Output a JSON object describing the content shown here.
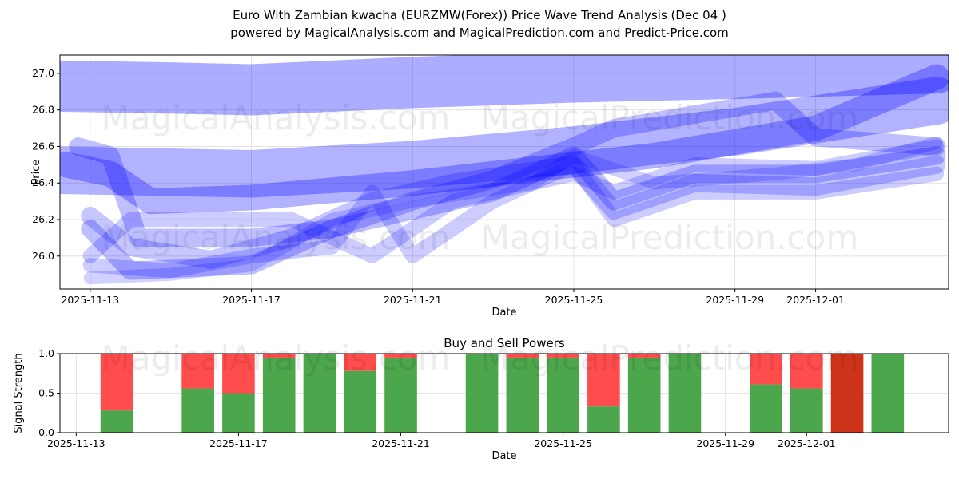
{
  "title": "Euro With Zambian kwacha (EURZMW(Forex)) Price Wave Trend Analysis (Dec 04 )",
  "subtitle": "powered by MagicalAnalysis.com and MagicalPrediction.com and Predict-Price.com",
  "watermarks": [
    "MagicalAnalysis.com",
    "MagicalPrediction.com"
  ],
  "chart_data": [
    {
      "type": "line",
      "title": "",
      "xlabel": "Date",
      "ylabel": "Price",
      "ylim": [
        25.82,
        27.1
      ],
      "x_origin": "2025-11-13",
      "xlim_days": [
        -0.75,
        21.3
      ],
      "yticks": [
        {
          "v": 26.0,
          "l": "26.0"
        },
        {
          "v": 26.2,
          "l": "26.2"
        },
        {
          "v": 26.4,
          "l": "26.4"
        },
        {
          "v": 26.6,
          "l": "26.6"
        },
        {
          "v": 26.8,
          "l": "26.8"
        },
        {
          "v": 27.0,
          "l": "27.0"
        }
      ],
      "xticks": [
        {
          "d": 0,
          "l": "2025-11-13"
        },
        {
          "d": 4,
          "l": "2025-11-17"
        },
        {
          "d": 8,
          "l": "2025-11-21"
        },
        {
          "d": 12,
          "l": "2025-11-25"
        },
        {
          "d": 16,
          "l": "2025-11-29"
        },
        {
          "d": 18,
          "l": "2025-12-01"
        }
      ],
      "color": "#0000ff",
      "waves": [
        {
          "width": 0.28,
          "alpha": 0.32,
          "points": [
            [
              -0.7,
              26.93
            ],
            [
              2,
              26.92
            ],
            [
              4,
              26.91
            ],
            [
              8,
              26.95
            ],
            [
              12,
              26.98
            ],
            [
              16,
              27.0
            ],
            [
              21,
              27.03
            ]
          ]
        },
        {
          "width": 0.26,
          "alpha": 0.3,
          "points": [
            [
              -0.7,
              26.47
            ],
            [
              4,
              26.45
            ],
            [
              8,
              26.5
            ],
            [
              12,
              26.58
            ],
            [
              16,
              26.68
            ],
            [
              21,
              26.85
            ]
          ]
        },
        {
          "width": 0.14,
          "alpha": 0.3,
          "points": [
            [
              -0.6,
              26.5
            ],
            [
              0.5,
              26.45
            ],
            [
              1.5,
              26.3
            ],
            [
              4,
              26.32
            ],
            [
              8,
              26.4
            ],
            [
              12,
              26.5
            ],
            [
              14,
              26.55
            ],
            [
              18,
              26.7
            ],
            [
              21,
              26.98
            ]
          ]
        },
        {
          "width": 0.1,
          "alpha": 0.25,
          "points": [
            [
              -0.3,
              26.6
            ],
            [
              0.5,
              26.55
            ],
            [
              1.2,
              26.1
            ],
            [
              4,
              26.1
            ],
            [
              6,
              26.15
            ],
            [
              8,
              26.3
            ],
            [
              10,
              26.42
            ],
            [
              12,
              26.6
            ],
            [
              13,
              26.7
            ],
            [
              17,
              26.85
            ],
            [
              18,
              26.65
            ],
            [
              21,
              26.6
            ]
          ]
        },
        {
          "width": 0.1,
          "alpha": 0.25,
          "points": [
            [
              0,
              26.15
            ],
            [
              1,
              25.92
            ],
            [
              4,
              25.95
            ],
            [
              6,
              26.15
            ],
            [
              8,
              26.25
            ],
            [
              10,
              26.35
            ],
            [
              12,
              26.55
            ],
            [
              13,
              26.3
            ],
            [
              15,
              26.45
            ],
            [
              18,
              26.45
            ],
            [
              21,
              26.55
            ]
          ]
        },
        {
          "width": 0.1,
          "alpha": 0.22,
          "points": [
            [
              0,
              26.22
            ],
            [
              1,
              26.05
            ],
            [
              3,
              25.98
            ],
            [
              5,
              26.1
            ],
            [
              7,
              26.3
            ],
            [
              9,
              26.4
            ],
            [
              12,
              26.5
            ],
            [
              13,
              26.25
            ],
            [
              15,
              26.4
            ],
            [
              18,
              26.38
            ],
            [
              21,
              26.5
            ]
          ]
        },
        {
          "width": 0.08,
          "alpha": 0.2,
          "points": [
            [
              0,
              25.95
            ],
            [
              2,
              25.92
            ],
            [
              4,
              26.0
            ],
            [
              6,
              26.05
            ],
            [
              7,
              26.35
            ],
            [
              8,
              26.0
            ],
            [
              10,
              26.3
            ],
            [
              12,
              26.5
            ],
            [
              13,
              26.2
            ],
            [
              15,
              26.35
            ],
            [
              18,
              26.35
            ],
            [
              21,
              26.45
            ]
          ]
        },
        {
          "width": 0.08,
          "alpha": 0.2,
          "points": [
            [
              0,
              26.0
            ],
            [
              1,
              26.2
            ],
            [
              3,
              26.2
            ],
            [
              5,
              26.2
            ],
            [
              7,
              26.0
            ],
            [
              9,
              26.3
            ],
            [
              12,
              26.45
            ],
            [
              13,
              26.35
            ],
            [
              15,
              26.5
            ],
            [
              18,
              26.48
            ],
            [
              21,
              26.6
            ]
          ]
        },
        {
          "width": 0.07,
          "alpha": 0.18,
          "points": [
            [
              0,
              25.88
            ],
            [
              2,
              25.9
            ],
            [
              4,
              25.95
            ],
            [
              6,
              26.2
            ],
            [
              8,
              26.3
            ],
            [
              11,
              26.4
            ],
            [
              12,
              26.55
            ],
            [
              14,
              26.4
            ],
            [
              17,
              26.45
            ],
            [
              19,
              26.5
            ],
            [
              21,
              26.62
            ]
          ]
        }
      ]
    },
    {
      "type": "bar",
      "title": "Buy and Sell Powers",
      "xlabel": "Date",
      "ylabel": "Signal Strength",
      "ylim": [
        0,
        1
      ],
      "x_origin": "2025-11-13",
      "xlim_days": [
        -0.4,
        21.5
      ],
      "yticks": [
        {
          "v": 0,
          "l": "0.0"
        },
        {
          "v": 0.5,
          "l": "0.5"
        },
        {
          "v": 1,
          "l": "1.0"
        }
      ],
      "xticks": [
        {
          "d": 0,
          "l": "2025-11-13"
        },
        {
          "d": 4,
          "l": "2025-11-17"
        },
        {
          "d": 8,
          "l": "2025-11-21"
        },
        {
          "d": 12,
          "l": "2025-11-25"
        },
        {
          "d": 16,
          "l": "2025-11-29"
        },
        {
          "d": 18,
          "l": "2025-12-01"
        }
      ],
      "buy_color": "#4ca64c",
      "sell_color": "#ff4c4c",
      "neutral_sell_color": "#cc3319",
      "bars": [
        {
          "d": 1,
          "buy": 0.28
        },
        {
          "d": 3,
          "buy": 0.56
        },
        {
          "d": 4,
          "buy": 0.5
        },
        {
          "d": 5,
          "buy": 0.95
        },
        {
          "d": 6,
          "buy": 1.0
        },
        {
          "d": 7,
          "buy": 0.78
        },
        {
          "d": 8,
          "buy": 0.95
        },
        {
          "d": 10,
          "buy": 1.0
        },
        {
          "d": 11,
          "buy": 0.95
        },
        {
          "d": 12,
          "buy": 0.95
        },
        {
          "d": 13,
          "buy": 0.33
        },
        {
          "d": 14,
          "buy": 0.95
        },
        {
          "d": 15,
          "buy": 1.0
        },
        {
          "d": 17,
          "buy": 0.61
        },
        {
          "d": 18,
          "buy": 0.56
        },
        {
          "d": 19,
          "buy": 0.0,
          "dark": true
        },
        {
          "d": 20,
          "buy": 1.0
        }
      ]
    }
  ]
}
